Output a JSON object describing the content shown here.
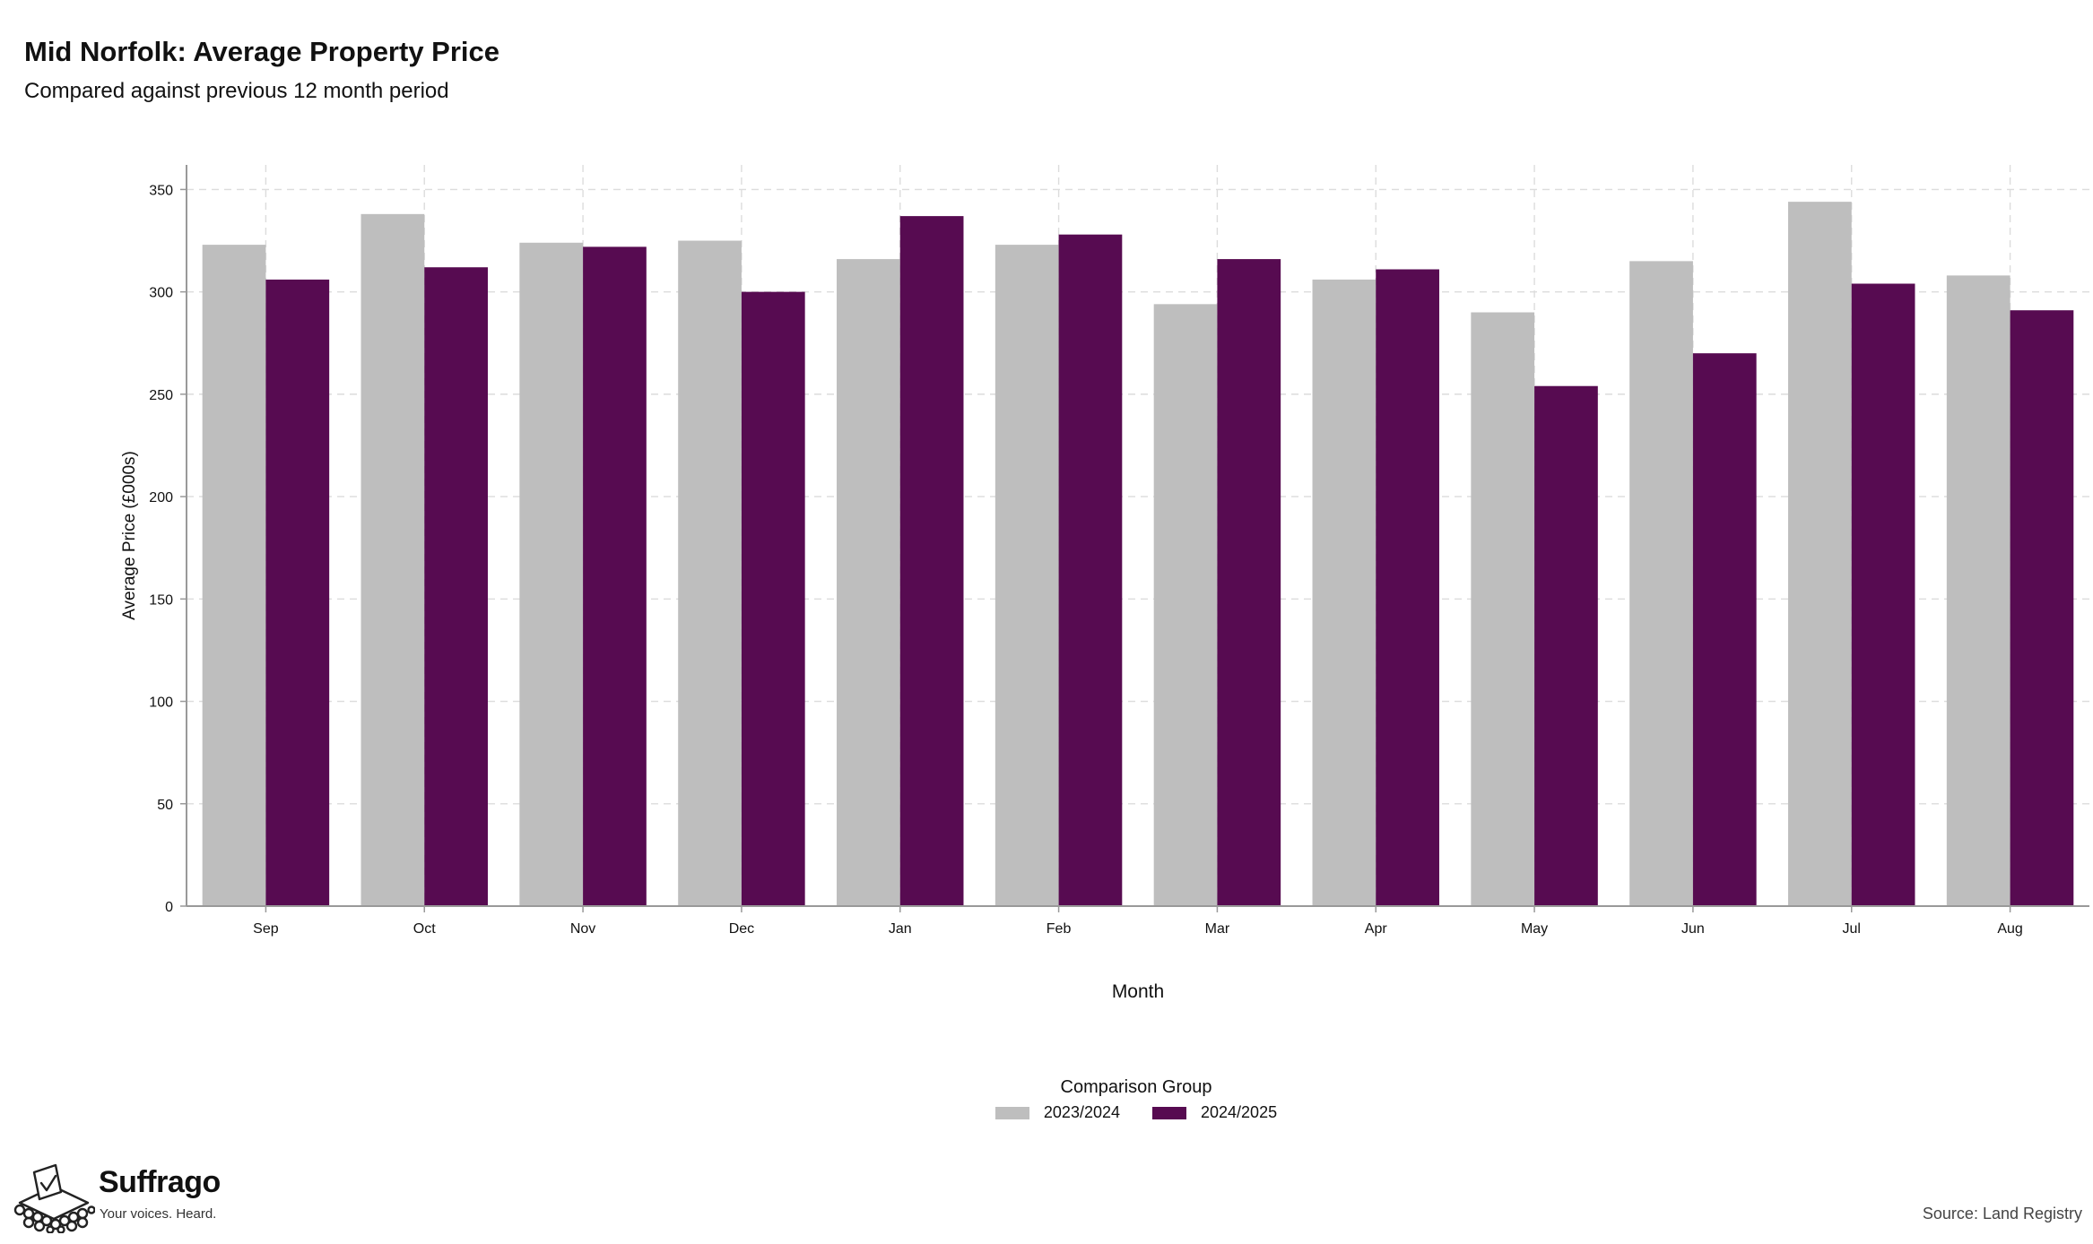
{
  "chart_data": {
    "type": "bar",
    "title": "Mid Norfolk: Average Property Price",
    "subtitle": "Compared against previous 12 month period",
    "xlabel": "Month",
    "ylabel": "Average Price (£000s)",
    "categories": [
      "Sep",
      "Oct",
      "Nov",
      "Dec",
      "Jan",
      "Feb",
      "Mar",
      "Apr",
      "May",
      "Jun",
      "Jul",
      "Aug"
    ],
    "ylim": [
      0,
      362
    ],
    "yticks": [
      0,
      50,
      100,
      150,
      200,
      250,
      300,
      350
    ],
    "grid": true,
    "legend_title": "Comparison Group",
    "legend_position": "bottom",
    "series": [
      {
        "name": "2023/2024",
        "color": "#bebebe",
        "values": [
          323,
          338,
          324,
          325,
          316,
          323,
          294,
          306,
          290,
          315,
          344,
          308
        ]
      },
      {
        "name": "2024/2025",
        "color": "#570b51",
        "values": [
          306,
          312,
          322,
          300,
          337,
          328,
          316,
          311,
          254,
          270,
          304,
          291
        ]
      }
    ]
  },
  "branding": {
    "name": "Suffrago",
    "tagline": "Your voices. Heard.",
    "icon": "ballot-box-icon"
  },
  "source": "Source: Land Registry"
}
